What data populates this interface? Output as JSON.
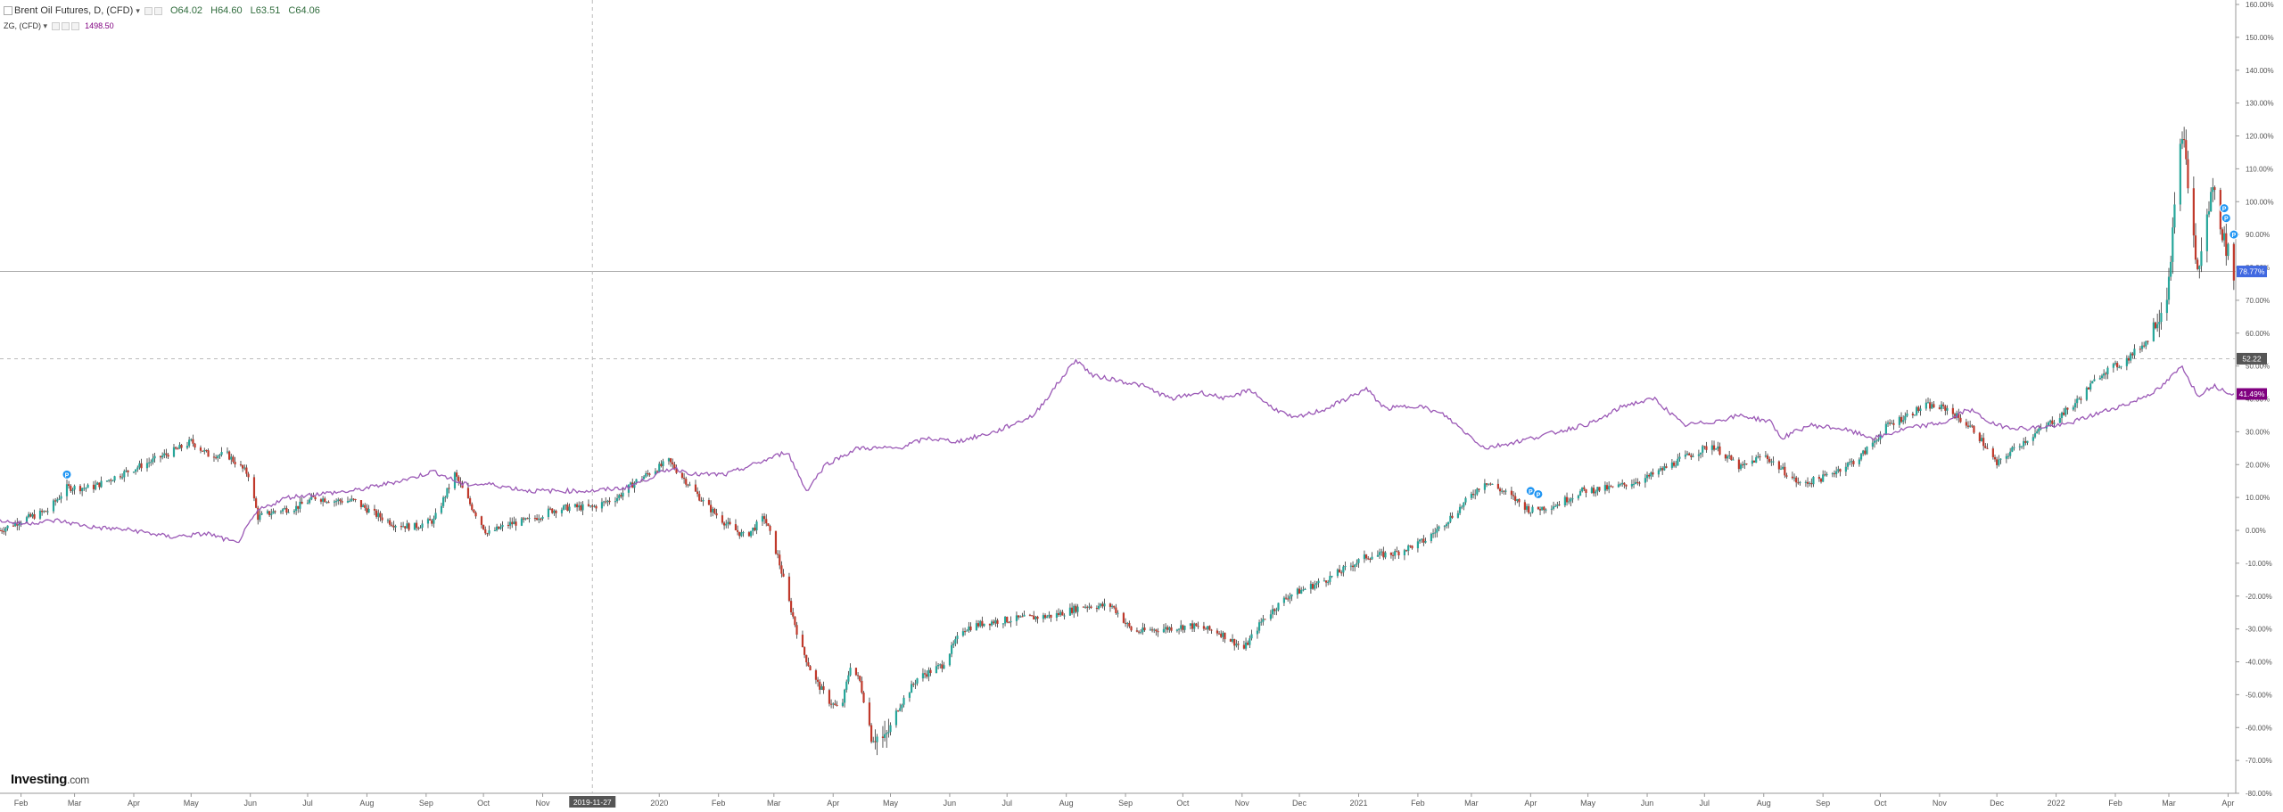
{
  "legend": {
    "main_title": "Brent Oil Futures, D, (CFD)",
    "open": "O64.02",
    "high": "H64.60",
    "low": "L63.51",
    "close": "C64.06",
    "compare_title": "ZG, (CFD)",
    "compare_value": "1498.50"
  },
  "logo": {
    "brand": "Investing",
    "suffix": ".com"
  },
  "crosshair_date": "2019-11-27",
  "price_labels": {
    "brent_last": "78.77%",
    "crosshair": "52.22",
    "gold_last": "41.49%"
  },
  "colors": {
    "up": "#26a69a",
    "down": "#c0392b",
    "wick": "#333333",
    "compare_line": "#9b59b6",
    "brent_label": "#4169e1",
    "gold_label": "#800080",
    "crosshair_label": "#555555",
    "event_marker": "#2196f3"
  },
  "chart_data": {
    "type": "line",
    "title": "Brent Oil Futures, D, (CFD)",
    "xlabel": "",
    "ylabel": "",
    "y_unit": "%",
    "ylim": [
      -80,
      160
    ],
    "y_ticks": [
      "160.00%",
      "150.00%",
      "140.00%",
      "130.00%",
      "120.00%",
      "110.00%",
      "100.00%",
      "90.00%",
      "80.00%",
      "70.00%",
      "60.00%",
      "50.00%",
      "40.00%",
      "30.00%",
      "20.00%",
      "10.00%",
      "0.00%",
      "-10.00%",
      "-20.00%",
      "-30.00%",
      "-40.00%",
      "-50.00%",
      "-60.00%",
      "-70.00%",
      "-80.00%"
    ],
    "x_range": [
      "2019-01-21",
      "2022-04-05"
    ],
    "x_ticks": [
      {
        "date": "2019-02-01",
        "label": "Feb"
      },
      {
        "date": "2019-03-01",
        "label": "Mar"
      },
      {
        "date": "2019-04-01",
        "label": "Apr"
      },
      {
        "date": "2019-05-01",
        "label": "May"
      },
      {
        "date": "2019-06-01",
        "label": "Jun"
      },
      {
        "date": "2019-07-01",
        "label": "Jul"
      },
      {
        "date": "2019-08-01",
        "label": "Aug"
      },
      {
        "date": "2019-09-01",
        "label": "Sep"
      },
      {
        "date": "2019-10-01",
        "label": "Oct"
      },
      {
        "date": "2019-11-01",
        "label": "Nov"
      },
      {
        "date": "2020-01-01",
        "label": "2020"
      },
      {
        "date": "2020-02-01",
        "label": "Feb"
      },
      {
        "date": "2020-03-01",
        "label": "Mar"
      },
      {
        "date": "2020-04-01",
        "label": "Apr"
      },
      {
        "date": "2020-05-01",
        "label": "May"
      },
      {
        "date": "2020-06-01",
        "label": "Jun"
      },
      {
        "date": "2020-07-01",
        "label": "Jul"
      },
      {
        "date": "2020-08-01",
        "label": "Aug"
      },
      {
        "date": "2020-09-01",
        "label": "Sep"
      },
      {
        "date": "2020-10-01",
        "label": "Oct"
      },
      {
        "date": "2020-11-01",
        "label": "Nov"
      },
      {
        "date": "2020-12-01",
        "label": "Dec"
      },
      {
        "date": "2021-01-01",
        "label": "2021"
      },
      {
        "date": "2021-02-01",
        "label": "Feb"
      },
      {
        "date": "2021-03-01",
        "label": "Mar"
      },
      {
        "date": "2021-04-01",
        "label": "Apr"
      },
      {
        "date": "2021-05-01",
        "label": "May"
      },
      {
        "date": "2021-06-01",
        "label": "Jun"
      },
      {
        "date": "2021-07-01",
        "label": "Jul"
      },
      {
        "date": "2021-08-01",
        "label": "Aug"
      },
      {
        "date": "2021-09-01",
        "label": "Sep"
      },
      {
        "date": "2021-10-01",
        "label": "Oct"
      },
      {
        "date": "2021-11-01",
        "label": "Nov"
      },
      {
        "date": "2021-12-01",
        "label": "Dec"
      },
      {
        "date": "2022-01-01",
        "label": "2022"
      },
      {
        "date": "2022-02-01",
        "label": "Feb"
      },
      {
        "date": "2022-03-01",
        "label": "Mar"
      },
      {
        "date": "2022-04-01",
        "label": "Apr"
      }
    ],
    "grid": false,
    "hline": 78.77,
    "crosshair": {
      "date": "2019-11-27",
      "value": 52.22
    },
    "series": [
      {
        "name": "Brent Oil Futures, D, (CFD)",
        "style": "candlestick",
        "points": [
          [
            "2019-01-21",
            0
          ],
          [
            "2019-02-01",
            3
          ],
          [
            "2019-02-15",
            6
          ],
          [
            "2019-02-25",
            13
          ],
          [
            "2019-03-10",
            13
          ],
          [
            "2019-03-25",
            17
          ],
          [
            "2019-04-10",
            21
          ],
          [
            "2019-04-25",
            25
          ],
          [
            "2019-05-01",
            27
          ],
          [
            "2019-05-10",
            23
          ],
          [
            "2019-05-20",
            23
          ],
          [
            "2019-05-31",
            17
          ],
          [
            "2019-06-05",
            4
          ],
          [
            "2019-06-15",
            6
          ],
          [
            "2019-06-25",
            7
          ],
          [
            "2019-07-05",
            10
          ],
          [
            "2019-07-15",
            9
          ],
          [
            "2019-07-25",
            9
          ],
          [
            "2019-08-05",
            5
          ],
          [
            "2019-08-15",
            2
          ],
          [
            "2019-08-25",
            1
          ],
          [
            "2019-09-05",
            3
          ],
          [
            "2019-09-16",
            17
          ],
          [
            "2019-09-24",
            8
          ],
          [
            "2019-10-03",
            -1
          ],
          [
            "2019-10-15",
            2
          ],
          [
            "2019-10-25",
            3
          ],
          [
            "2019-11-05",
            6
          ],
          [
            "2019-11-15",
            7
          ],
          [
            "2019-11-27",
            7
          ],
          [
            "2019-12-10",
            10
          ],
          [
            "2019-12-20",
            15
          ],
          [
            "2020-01-06",
            21
          ],
          [
            "2020-01-15",
            15
          ],
          [
            "2020-01-25",
            8
          ],
          [
            "2020-02-05",
            2
          ],
          [
            "2020-02-15",
            -2
          ],
          [
            "2020-02-25",
            4
          ],
          [
            "2020-03-03",
            -8
          ],
          [
            "2020-03-09",
            -22
          ],
          [
            "2020-03-15",
            -35
          ],
          [
            "2020-03-22",
            -45
          ],
          [
            "2020-03-30",
            -52
          ],
          [
            "2020-04-05",
            -55
          ],
          [
            "2020-04-10",
            -41
          ],
          [
            "2020-04-15",
            -46
          ],
          [
            "2020-04-21",
            -62
          ],
          [
            "2020-04-28",
            -64
          ],
          [
            "2020-05-05",
            -54
          ],
          [
            "2020-05-15",
            -45
          ],
          [
            "2020-05-28",
            -41
          ],
          [
            "2020-06-08",
            -30
          ],
          [
            "2020-06-20",
            -28
          ],
          [
            "2020-07-05",
            -27
          ],
          [
            "2020-07-25",
            -26
          ],
          [
            "2020-08-10",
            -23
          ],
          [
            "2020-08-25",
            -23
          ],
          [
            "2020-09-05",
            -31
          ],
          [
            "2020-09-20",
            -30
          ],
          [
            "2020-10-05",
            -29
          ],
          [
            "2020-10-20",
            -31
          ],
          [
            "2020-11-02",
            -36
          ],
          [
            "2020-11-12",
            -27
          ],
          [
            "2020-11-25",
            -20
          ],
          [
            "2020-12-15",
            -15
          ],
          [
            "2021-01-05",
            -8
          ],
          [
            "2021-01-20",
            -7
          ],
          [
            "2021-02-05",
            -3
          ],
          [
            "2021-02-20",
            5
          ],
          [
            "2021-03-08",
            15
          ],
          [
            "2021-03-20",
            11
          ],
          [
            "2021-04-01",
            6
          ],
          [
            "2021-04-15",
            8
          ],
          [
            "2021-04-28",
            12
          ],
          [
            "2021-05-15",
            13
          ],
          [
            "2021-06-01",
            16
          ],
          [
            "2021-06-20",
            22
          ],
          [
            "2021-07-05",
            26
          ],
          [
            "2021-07-20",
            19
          ],
          [
            "2021-08-01",
            23
          ],
          [
            "2021-08-20",
            14
          ],
          [
            "2021-09-01",
            16
          ],
          [
            "2021-09-20",
            22
          ],
          [
            "2021-10-05",
            32
          ],
          [
            "2021-10-25",
            38
          ],
          [
            "2021-11-05",
            37
          ],
          [
            "2021-11-20",
            30
          ],
          [
            "2021-12-01",
            20
          ],
          [
            "2021-12-10",
            25
          ],
          [
            "2021-12-25",
            31
          ],
          [
            "2022-01-10",
            38
          ],
          [
            "2022-01-25",
            48
          ],
          [
            "2022-02-05",
            51
          ],
          [
            "2022-02-18",
            58
          ],
          [
            "2022-02-28",
            72
          ],
          [
            "2022-03-08",
            122
          ],
          [
            "2022-03-16",
            78
          ],
          [
            "2022-03-24",
            105
          ],
          [
            "2022-03-30",
            88
          ],
          [
            "2022-04-04",
            78.77
          ]
        ]
      },
      {
        "name": "ZG, (CFD)",
        "style": "line",
        "points": [
          [
            "2019-01-21",
            3
          ],
          [
            "2019-02-01",
            2
          ],
          [
            "2019-02-20",
            3
          ],
          [
            "2019-03-10",
            1
          ],
          [
            "2019-04-01",
            0
          ],
          [
            "2019-04-20",
            -2
          ],
          [
            "2019-05-10",
            -1
          ],
          [
            "2019-05-25",
            -4
          ],
          [
            "2019-06-05",
            6
          ],
          [
            "2019-06-20",
            10
          ],
          [
            "2019-07-05",
            11
          ],
          [
            "2019-07-25",
            12
          ],
          [
            "2019-08-10",
            14
          ],
          [
            "2019-08-25",
            16
          ],
          [
            "2019-09-05",
            18
          ],
          [
            "2019-09-20",
            14
          ],
          [
            "2019-10-05",
            14
          ],
          [
            "2019-10-25",
            12
          ],
          [
            "2019-11-10",
            12
          ],
          [
            "2019-11-27",
            12
          ],
          [
            "2019-12-15",
            13
          ],
          [
            "2020-01-08",
            19
          ],
          [
            "2020-01-20",
            17
          ],
          [
            "2020-02-05",
            17
          ],
          [
            "2020-02-24",
            21
          ],
          [
            "2020-03-08",
            24
          ],
          [
            "2020-03-18",
            12
          ],
          [
            "2020-03-28",
            20
          ],
          [
            "2020-04-14",
            25
          ],
          [
            "2020-05-05",
            25
          ],
          [
            "2020-05-20",
            28
          ],
          [
            "2020-06-05",
            27
          ],
          [
            "2020-06-25",
            30
          ],
          [
            "2020-07-15",
            35
          ],
          [
            "2020-07-28",
            45
          ],
          [
            "2020-08-06",
            52
          ],
          [
            "2020-08-15",
            47
          ],
          [
            "2020-08-25",
            46
          ],
          [
            "2020-09-10",
            44
          ],
          [
            "2020-09-25",
            40
          ],
          [
            "2020-10-10",
            42
          ],
          [
            "2020-10-25",
            40
          ],
          [
            "2020-11-05",
            43
          ],
          [
            "2020-11-15",
            38
          ],
          [
            "2020-11-28",
            34
          ],
          [
            "2020-12-15",
            37
          ],
          [
            "2021-01-05",
            43
          ],
          [
            "2021-01-15",
            37
          ],
          [
            "2021-02-01",
            38
          ],
          [
            "2021-02-15",
            35
          ],
          [
            "2021-03-08",
            25
          ],
          [
            "2021-03-25",
            27
          ],
          [
            "2021-04-15",
            30
          ],
          [
            "2021-05-05",
            33
          ],
          [
            "2021-05-20",
            38
          ],
          [
            "2021-06-05",
            40
          ],
          [
            "2021-06-20",
            32
          ],
          [
            "2021-07-05",
            33
          ],
          [
            "2021-07-20",
            35
          ],
          [
            "2021-08-05",
            33
          ],
          [
            "2021-08-10",
            28
          ],
          [
            "2021-08-25",
            32
          ],
          [
            "2021-09-10",
            31
          ],
          [
            "2021-09-28",
            28
          ],
          [
            "2021-10-15",
            31
          ],
          [
            "2021-11-05",
            33
          ],
          [
            "2021-11-16",
            37
          ],
          [
            "2021-11-30",
            32
          ],
          [
            "2021-12-15",
            31
          ],
          [
            "2022-01-05",
            32
          ],
          [
            "2022-01-25",
            36
          ],
          [
            "2022-02-10",
            39
          ],
          [
            "2022-02-24",
            43
          ],
          [
            "2022-03-08",
            50
          ],
          [
            "2022-03-16",
            41
          ],
          [
            "2022-03-24",
            44
          ],
          [
            "2022-04-04",
            41.49
          ]
        ]
      }
    ],
    "event_markers": [
      {
        "date": "2019-02-25",
        "value": 17
      },
      {
        "date": "2021-04-01",
        "value": 12
      },
      {
        "date": "2021-04-05",
        "value": 11
      },
      {
        "date": "2022-03-30",
        "value": 98
      },
      {
        "date": "2022-03-31",
        "value": 95
      },
      {
        "date": "2022-04-04",
        "value": 90
      }
    ]
  }
}
